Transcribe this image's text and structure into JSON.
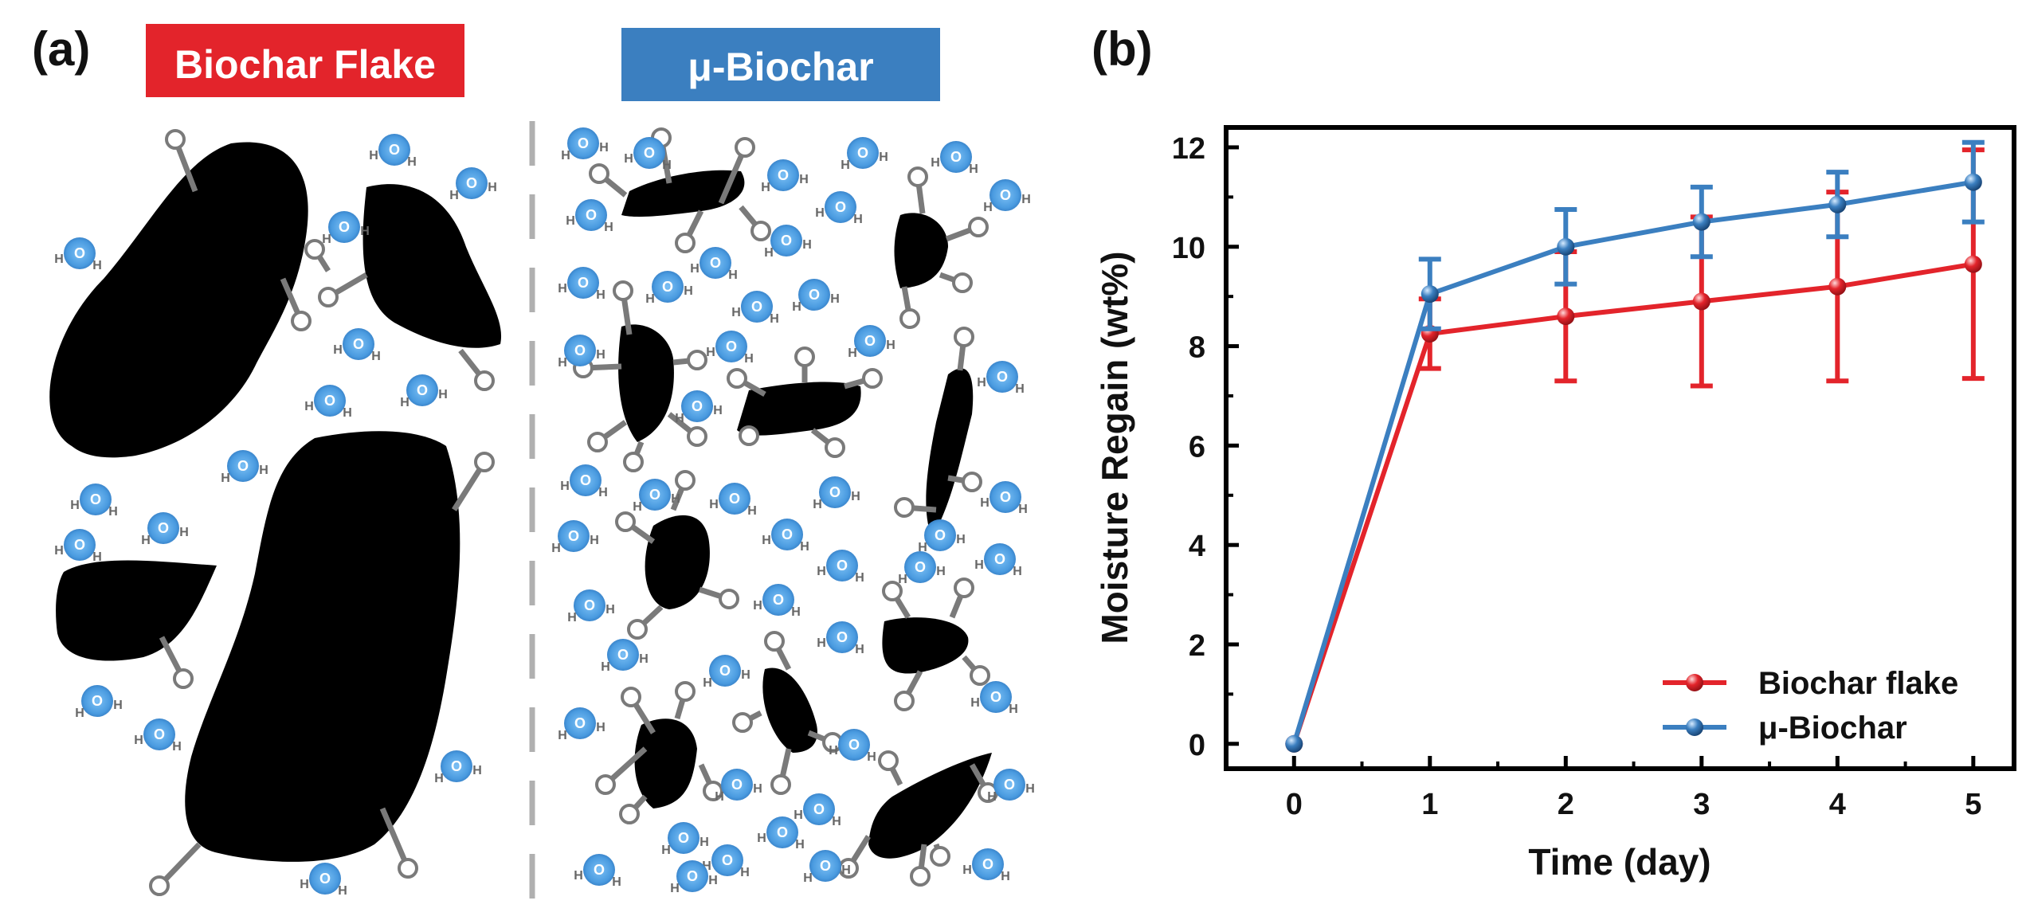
{
  "panel_a": {
    "label": "(a)",
    "left_title": "Biochar Flake",
    "right_title": "μ-Biochar",
    "water": {
      "o": "O",
      "h": "H"
    }
  },
  "panel_b": {
    "label": "(b)"
  },
  "colors": {
    "flake": "#e3242b",
    "micro": "#3b7fc0",
    "water": "#4a9be0",
    "particle": "#000000",
    "divider": "#b0b0b0",
    "hydroxyl": "#7a7a7a"
  },
  "chart_data": {
    "type": "line",
    "xlabel": "Time (day)",
    "ylabel": "Moisture Regain (wt%)",
    "x": [
      0,
      1,
      2,
      3,
      4,
      5
    ],
    "xlim": [
      -0.5,
      5.3
    ],
    "ylim": [
      -0.5,
      12.4
    ],
    "xticks": [
      0,
      1,
      2,
      3,
      4,
      5
    ],
    "yticks": [
      0,
      2,
      4,
      6,
      8,
      10,
      12
    ],
    "legend_position": "bottom-right",
    "series": [
      {
        "name": "Biochar flake",
        "color": "#e3242b",
        "values": [
          0,
          8.25,
          8.6,
          8.9,
          9.2,
          9.65
        ],
        "errors": [
          0,
          0.7,
          1.3,
          1.7,
          1.9,
          2.3
        ]
      },
      {
        "name": "μ-Biochar",
        "color": "#3b7fc0",
        "values": [
          0,
          9.05,
          10.0,
          10.5,
          10.85,
          11.3
        ],
        "errors": [
          0,
          0.7,
          0.75,
          0.7,
          0.65,
          0.8
        ]
      }
    ]
  }
}
